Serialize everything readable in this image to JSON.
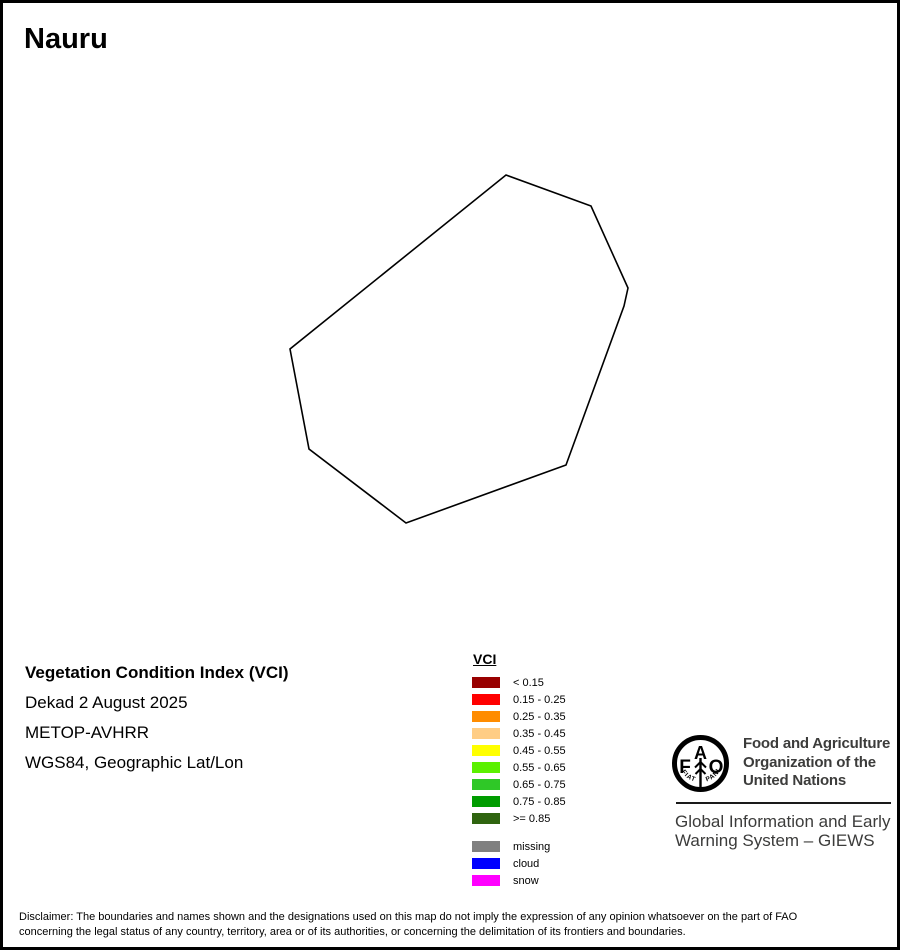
{
  "title": "Nauru",
  "colors": {
    "outline": "#000000",
    "fao_text": "#3C3C3B"
  },
  "map": {
    "region_name": "Nauru island outline",
    "outline_points": "503,172 588,203 625,285 621,303 563,462 403,520 306,446 287,346"
  },
  "info": {
    "heading": "Vegetation Condition Index (VCI)",
    "dekad": "Dekad 2 August 2025",
    "sensor": "METOP-AVHRR",
    "projection": "WGS84, Geographic Lat/Lon"
  },
  "legend": {
    "title": "VCI",
    "classes": [
      {
        "label": "< 0.15",
        "color": "#990000"
      },
      {
        "label": "0.15 - 0.25",
        "color": "#FF0000"
      },
      {
        "label": "0.25 - 0.35",
        "color": "#FF8C00"
      },
      {
        "label": "0.35 - 0.45",
        "color": "#FFCD85"
      },
      {
        "label": "0.45 - 0.55",
        "color": "#FFFF00"
      },
      {
        "label": "0.55 - 0.65",
        "color": "#5BF000"
      },
      {
        "label": "0.65 - 0.75",
        "color": "#2FC827"
      },
      {
        "label": "0.75 - 0.85",
        "color": "#009C00"
      },
      {
        "label": ">= 0.85",
        "color": "#2F640F"
      }
    ],
    "status": [
      {
        "label": "missing",
        "color": "#808080"
      },
      {
        "label": "cloud",
        "color": "#0000FF"
      },
      {
        "label": "snow",
        "color": "#FF00FF"
      }
    ]
  },
  "fao": {
    "logo": {
      "letter_f": "F",
      "letter_a": "A",
      "letter_o": "O",
      "motto_left": "FIAT",
      "motto_right": "PANIS"
    },
    "org_lines": [
      "Food and Agriculture",
      "Organization of the",
      "United Nations"
    ],
    "giews_lines": [
      "Global Information and Early",
      "Warning System – GIEWS"
    ]
  },
  "disclaimer": {
    "line1": "Disclaimer: The boundaries and names shown and the designations used on this map do not imply the expression of any opinion whatsoever on the part of FAO",
    "line2": "concerning the legal status of any country, territory, area or of its authorities, or concerning the delimitation of its frontiers and boundaries."
  }
}
